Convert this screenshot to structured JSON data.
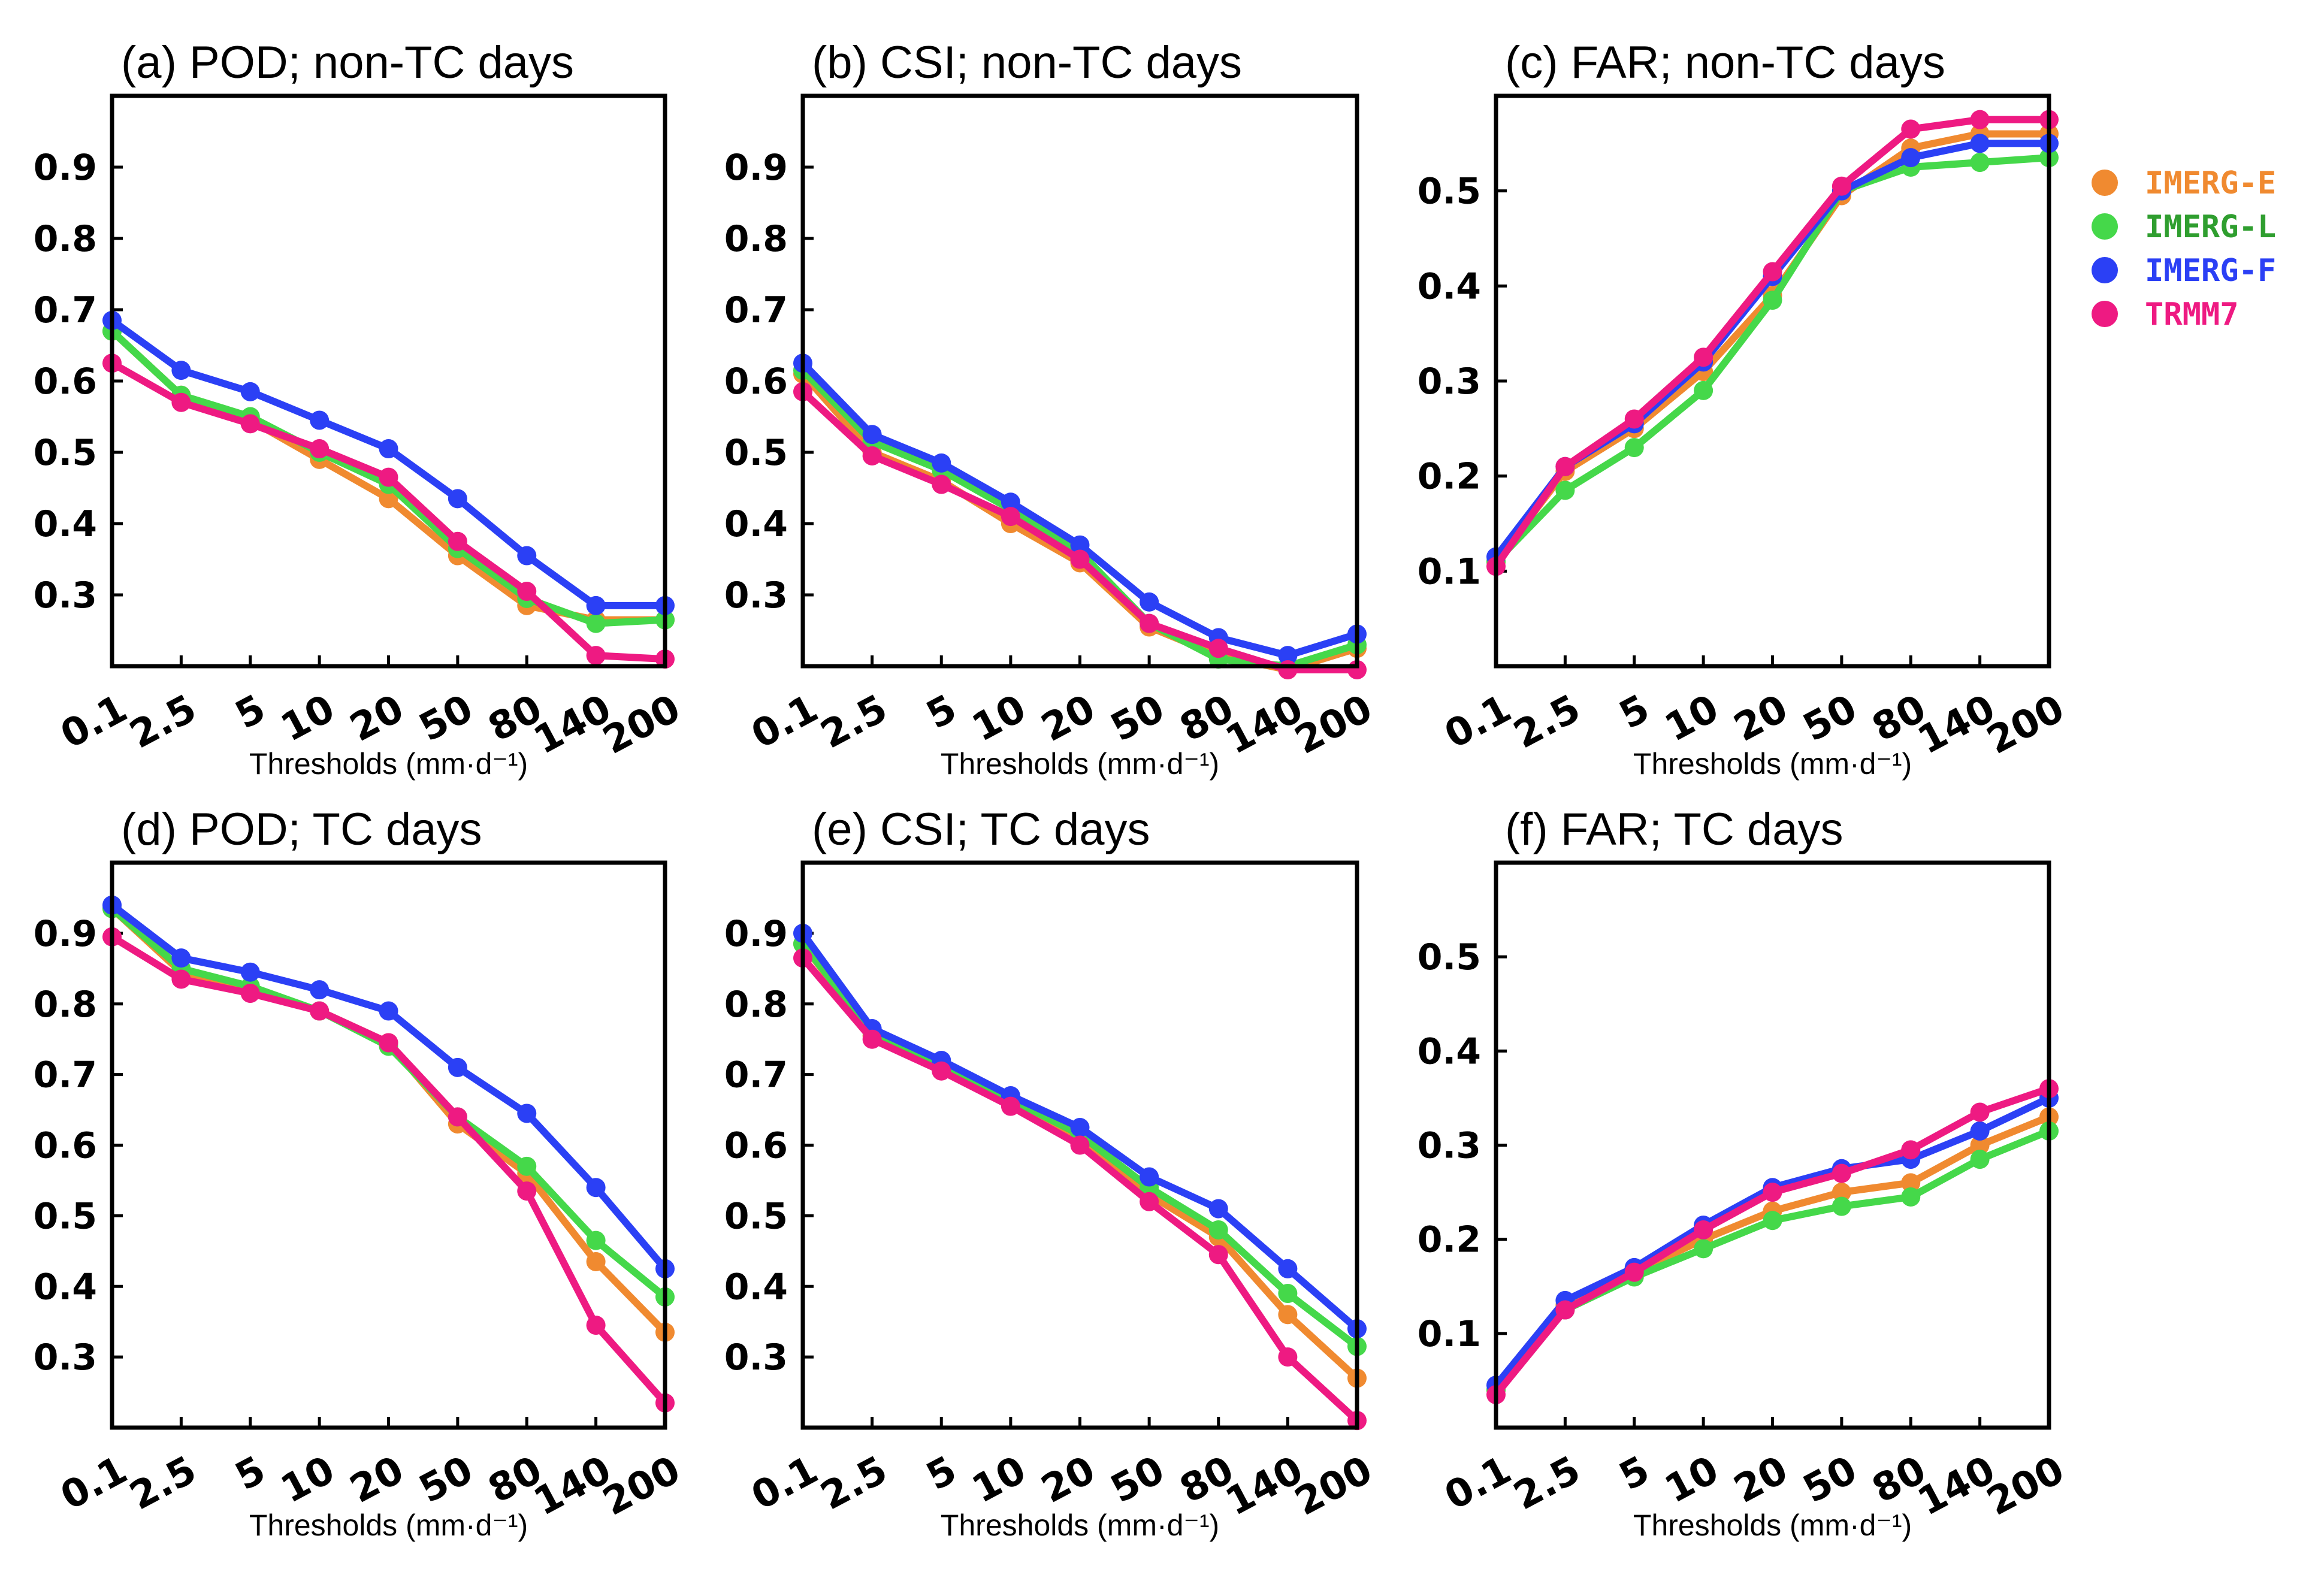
{
  "chart_data": [
    {
      "type": "line",
      "title": "(a) POD; non-TC days",
      "xlabel": "Thresholds (mm·d⁻¹)",
      "ylabel": "",
      "categories": [
        "0.1",
        "2.5",
        "5",
        "10",
        "20",
        "50",
        "80",
        "140",
        "200"
      ],
      "ylim": [
        0.2,
        1.0
      ],
      "yticks": [
        "0.3",
        "0.4",
        "0.5",
        "0.6",
        "0.7",
        "0.8",
        "0.9"
      ],
      "series": [
        {
          "name": "IMERG-E",
          "values": [
            0.67,
            0.58,
            0.545,
            0.49,
            0.435,
            0.355,
            0.285,
            0.265,
            0.265
          ]
        },
        {
          "name": "IMERG-L",
          "values": [
            0.67,
            0.58,
            0.55,
            0.5,
            0.455,
            0.365,
            0.295,
            0.26,
            0.265
          ]
        },
        {
          "name": "IMERG-F",
          "values": [
            0.685,
            0.615,
            0.585,
            0.545,
            0.505,
            0.435,
            0.355,
            0.285,
            0.285
          ]
        },
        {
          "name": "TRMM7",
          "values": [
            0.625,
            0.57,
            0.54,
            0.505,
            0.465,
            0.375,
            0.305,
            0.215,
            0.21
          ]
        }
      ]
    },
    {
      "type": "line",
      "title": "(b) CSI; non-TC days",
      "xlabel": "Thresholds (mm·d⁻¹)",
      "ylabel": "",
      "categories": [
        "0.1",
        "2.5",
        "5",
        "10",
        "20",
        "50",
        "80",
        "140",
        "200"
      ],
      "ylim": [
        0.2,
        1.0
      ],
      "yticks": [
        "0.3",
        "0.4",
        "0.5",
        "0.6",
        "0.7",
        "0.8",
        "0.9"
      ],
      "series": [
        {
          "name": "IMERG-E",
          "values": [
            0.61,
            0.5,
            0.46,
            0.4,
            0.345,
            0.255,
            0.215,
            0.195,
            0.225
          ]
        },
        {
          "name": "IMERG-L",
          "values": [
            0.615,
            0.515,
            0.475,
            0.42,
            0.36,
            0.26,
            0.21,
            0.2,
            0.23
          ]
        },
        {
          "name": "IMERG-F",
          "values": [
            0.625,
            0.525,
            0.485,
            0.43,
            0.37,
            0.29,
            0.24,
            0.215,
            0.245
          ]
        },
        {
          "name": "TRMM7",
          "values": [
            0.585,
            0.495,
            0.455,
            0.41,
            0.35,
            0.26,
            0.225,
            0.195,
            0.195
          ]
        }
      ]
    },
    {
      "type": "line",
      "title": "(c) FAR; non-TC days",
      "xlabel": "Thresholds (mm·d⁻¹)",
      "ylabel": "",
      "categories": [
        "0.1",
        "2.5",
        "5",
        "10",
        "20",
        "50",
        "80",
        "140",
        "200"
      ],
      "ylim": [
        0.0,
        0.6
      ],
      "yticks": [
        "0.1",
        "0.2",
        "0.3",
        "0.4",
        "0.5"
      ],
      "series": [
        {
          "name": "IMERG-E",
          "values": [
            0.11,
            0.205,
            0.25,
            0.31,
            0.39,
            0.495,
            0.545,
            0.56,
            0.56
          ]
        },
        {
          "name": "IMERG-L",
          "values": [
            0.11,
            0.185,
            0.23,
            0.29,
            0.385,
            0.5,
            0.525,
            0.53,
            0.535
          ]
        },
        {
          "name": "IMERG-F",
          "values": [
            0.115,
            0.21,
            0.255,
            0.32,
            0.41,
            0.5,
            0.535,
            0.55,
            0.55
          ]
        },
        {
          "name": "TRMM7",
          "values": [
            0.105,
            0.21,
            0.26,
            0.325,
            0.415,
            0.505,
            0.565,
            0.575,
            0.575
          ]
        }
      ]
    },
    {
      "type": "line",
      "title": "(d) POD; TC days",
      "xlabel": "Thresholds (mm·d⁻¹)",
      "ylabel": "",
      "categories": [
        "0.1",
        "2.5",
        "5",
        "10",
        "20",
        "50",
        "80",
        "140",
        "200"
      ],
      "ylim": [
        0.2,
        1.0
      ],
      "yticks": [
        "0.3",
        "0.4",
        "0.5",
        "0.6",
        "0.7",
        "0.8",
        "0.9"
      ],
      "series": [
        {
          "name": "IMERG-E",
          "values": [
            0.935,
            0.845,
            0.82,
            0.79,
            0.745,
            0.63,
            0.56,
            0.435,
            0.335
          ]
        },
        {
          "name": "IMERG-L",
          "values": [
            0.935,
            0.85,
            0.825,
            0.79,
            0.74,
            0.64,
            0.57,
            0.465,
            0.385
          ]
        },
        {
          "name": "IMERG-F",
          "values": [
            0.94,
            0.865,
            0.845,
            0.82,
            0.79,
            0.71,
            0.645,
            0.54,
            0.425
          ]
        },
        {
          "name": "TRMM7",
          "values": [
            0.895,
            0.835,
            0.815,
            0.79,
            0.745,
            0.64,
            0.535,
            0.345,
            0.235
          ]
        }
      ]
    },
    {
      "type": "line",
      "title": "(e) CSI; TC days",
      "xlabel": "Thresholds (mm·d⁻¹)",
      "ylabel": "",
      "categories": [
        "0.1",
        "2.5",
        "5",
        "10",
        "20",
        "50",
        "80",
        "140",
        "200"
      ],
      "ylim": [
        0.2,
        1.0
      ],
      "yticks": [
        "0.3",
        "0.4",
        "0.5",
        "0.6",
        "0.7",
        "0.8",
        "0.9"
      ],
      "series": [
        {
          "name": "IMERG-E",
          "values": [
            0.885,
            0.755,
            0.71,
            0.665,
            0.61,
            0.53,
            0.47,
            0.36,
            0.27
          ]
        },
        {
          "name": "IMERG-L",
          "values": [
            0.885,
            0.76,
            0.715,
            0.665,
            0.615,
            0.54,
            0.48,
            0.39,
            0.315
          ]
        },
        {
          "name": "IMERG-F",
          "values": [
            0.9,
            0.765,
            0.72,
            0.67,
            0.625,
            0.555,
            0.51,
            0.425,
            0.34
          ]
        },
        {
          "name": "TRMM7",
          "values": [
            0.865,
            0.75,
            0.705,
            0.655,
            0.6,
            0.52,
            0.445,
            0.3,
            0.21
          ]
        }
      ]
    },
    {
      "type": "line",
      "title": "(f) FAR; TC days",
      "xlabel": "Thresholds (mm·d⁻¹)",
      "ylabel": "",
      "categories": [
        "0.1",
        "2.5",
        "5",
        "10",
        "20",
        "50",
        "80",
        "140",
        "200"
      ],
      "ylim": [
        0.0,
        0.6
      ],
      "yticks": [
        "0.1",
        "0.2",
        "0.3",
        "0.4",
        "0.5"
      ],
      "series": [
        {
          "name": "IMERG-E",
          "values": [
            0.04,
            0.13,
            0.165,
            0.2,
            0.23,
            0.25,
            0.26,
            0.3,
            0.33
          ]
        },
        {
          "name": "IMERG-L",
          "values": [
            0.04,
            0.125,
            0.16,
            0.19,
            0.22,
            0.235,
            0.245,
            0.285,
            0.315
          ]
        },
        {
          "name": "IMERG-F",
          "values": [
            0.045,
            0.135,
            0.17,
            0.215,
            0.255,
            0.275,
            0.285,
            0.315,
            0.35
          ]
        },
        {
          "name": "TRMM7",
          "values": [
            0.035,
            0.125,
            0.165,
            0.21,
            0.25,
            0.27,
            0.295,
            0.335,
            0.36
          ]
        }
      ]
    }
  ],
  "legend": {
    "entries": [
      {
        "label": "IMERG-E",
        "marker_color": "#f08a30",
        "text_color": "#f08a30"
      },
      {
        "label": "IMERG-L",
        "marker_color": "#45d84a",
        "text_color": "#2f9e2f"
      },
      {
        "label": "IMERG-F",
        "marker_color": "#2b40f5",
        "text_color": "#2b40f5"
      },
      {
        "label": "TRMM7",
        "marker_color": "#ee1a82",
        "text_color": "#ee1a82"
      }
    ]
  },
  "colors": {
    "IMERG-E": "#f08a30",
    "IMERG-L": "#45d84a",
    "IMERG-F": "#2b40f5",
    "TRMM7": "#ee1a82"
  }
}
